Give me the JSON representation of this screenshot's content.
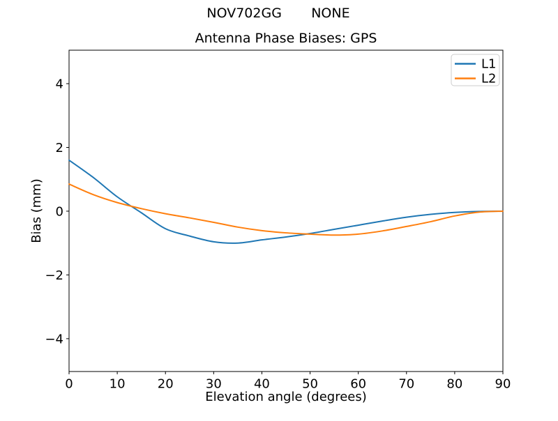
{
  "figure": {
    "suptitle": "NOV702GG       NONE"
  },
  "chart_data": {
    "type": "line",
    "title": "Antenna Phase Biases: GPS",
    "xlabel": "Elevation angle (degrees)",
    "ylabel": "Bias (mm)",
    "xlim": [
      0,
      90
    ],
    "ylim": [
      -5.03,
      5.05
    ],
    "xtick_values": [
      0,
      10,
      20,
      30,
      40,
      50,
      60,
      70,
      80,
      90
    ],
    "xtick_labels": [
      "0",
      "10",
      "20",
      "30",
      "40",
      "50",
      "60",
      "70",
      "80",
      "90"
    ],
    "ytick_values": [
      -4,
      -2,
      0,
      2,
      4
    ],
    "ytick_labels": [
      "−4",
      "−2",
      "0",
      "2",
      "4"
    ],
    "grid": false,
    "legend": {
      "position": "upper right",
      "entries": [
        "L1",
        "L2"
      ]
    },
    "x": [
      0,
      5,
      10,
      15,
      20,
      25,
      30,
      35,
      40,
      45,
      50,
      55,
      60,
      65,
      70,
      75,
      80,
      85,
      90
    ],
    "series": [
      {
        "name": "L1",
        "color": "#1f77b4",
        "values": [
          1.6,
          1.06,
          0.45,
          -0.05,
          -0.55,
          -0.78,
          -0.96,
          -1.0,
          -0.9,
          -0.81,
          -0.7,
          -0.57,
          -0.44,
          -0.31,
          -0.19,
          -0.1,
          -0.04,
          -0.01,
          0.0
        ]
      },
      {
        "name": "L2",
        "color": "#ff7f0e",
        "values": [
          0.85,
          0.52,
          0.27,
          0.08,
          -0.08,
          -0.21,
          -0.35,
          -0.5,
          -0.61,
          -0.68,
          -0.72,
          -0.75,
          -0.72,
          -0.62,
          -0.48,
          -0.33,
          -0.15,
          -0.03,
          0.0
        ]
      }
    ]
  },
  "style": {
    "axis_color": "#000000",
    "legend_border_color": "#cccccc",
    "background_color": "#ffffff"
  }
}
